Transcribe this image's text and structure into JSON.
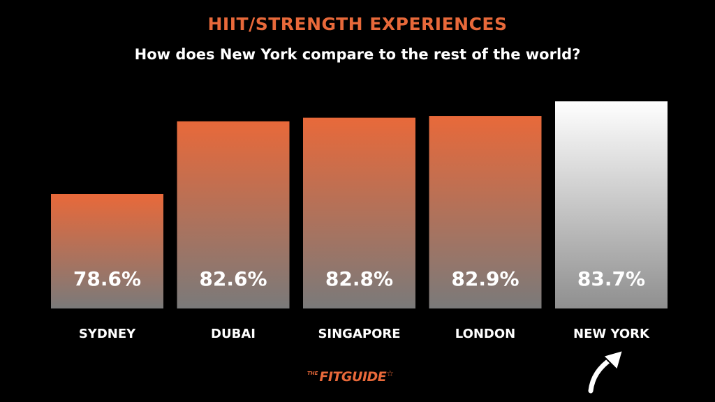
{
  "colors": {
    "accent": "#e8693a",
    "bar_top": "#e8693a",
    "bar_bottom": "#7a7a7a",
    "highlight_top": "#ffffff",
    "highlight_bottom": "#8f8f8f",
    "text": "#ffffff",
    "background": "#000000"
  },
  "chart_data": {
    "type": "bar",
    "title": "HIIT/STRENGTH EXPERIENCES",
    "subtitle": "How does New York compare to the rest of the world?",
    "categories": [
      "SYDNEY",
      "DUBAI",
      "SINGAPORE",
      "LONDON",
      "NEW YORK"
    ],
    "values": [
      78.6,
      82.6,
      82.8,
      82.9,
      83.7
    ],
    "value_labels": [
      "78.6%",
      "82.6%",
      "82.8%",
      "82.9%",
      "83.7%"
    ],
    "highlight_category": "NEW YORK",
    "ylim": [
      72.3,
      84.4
    ],
    "grid": false,
    "legend": "none"
  },
  "branding": {
    "logo_text_small": "THE",
    "logo_text": "FITGUIDE",
    "logo_star": "☆",
    "arrow_icon": "curved-arrow-up-icon"
  }
}
